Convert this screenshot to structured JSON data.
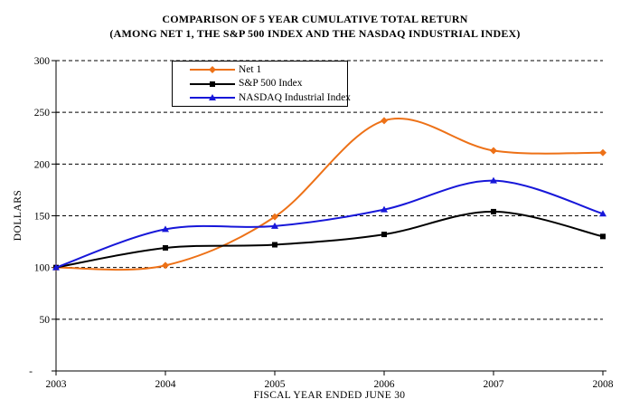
{
  "chart_data": {
    "type": "line",
    "title": "COMPARISON OF 5 YEAR CUMULATIVE TOTAL RETURN",
    "subtitle": "(AMONG NET 1, THE S&P 500 INDEX AND THE NASDAQ INDUSTRIAL INDEX)",
    "xlabel": "FISCAL YEAR ENDED JUNE 30",
    "ylabel": "DOLLARS",
    "categories": [
      "2003",
      "2004",
      "2005",
      "2006",
      "2007",
      "2008"
    ],
    "series": [
      {
        "name": "Net 1",
        "color": "#ED7117",
        "marker": "diamond",
        "values": [
          100,
          102,
          149,
          242,
          213,
          211
        ]
      },
      {
        "name": "S&P 500 Index",
        "color": "#000000",
        "marker": "square",
        "values": [
          100,
          119,
          122,
          132,
          154,
          130
        ]
      },
      {
        "name": "NASDAQ Industrial Index",
        "color": "#1717D9",
        "marker": "triangle",
        "values": [
          100,
          137,
          140,
          156,
          184,
          152
        ]
      }
    ],
    "ylim": [
      0,
      300
    ],
    "ytick_step": 50,
    "ytick_labels": [
      "-",
      "50",
      "100",
      "150",
      "200",
      "250",
      "300"
    ],
    "grid": "dashed-horizontal",
    "legend_position": "top-left-inset",
    "smoothed_lines": true
  }
}
